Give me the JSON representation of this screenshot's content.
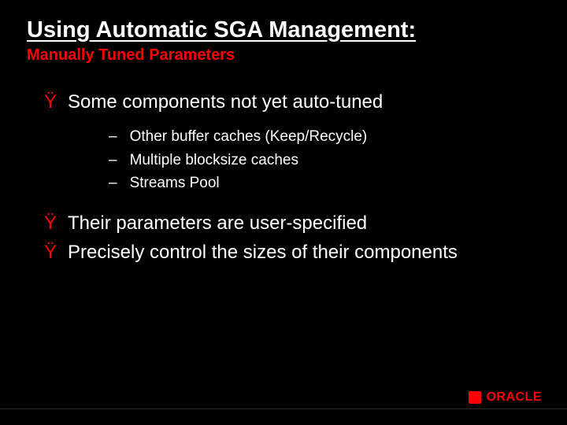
{
  "colors": {
    "background": "#000000",
    "title": "#ffffff",
    "subtitle": "#ff0000",
    "body_text": "#ffffff",
    "bullet_marker": "#ff0000",
    "sub_marker": "#ffffff",
    "logo_accent": "#ff0000"
  },
  "typography": {
    "title_fontsize": 29,
    "subtitle_fontsize": 20,
    "bullet_fontsize": 24,
    "sub_fontsize": 19,
    "font_family": "Arial"
  },
  "title": "Using Automatic SGA Management:",
  "subtitle": "Manually Tuned Parameters",
  "bullet_marker": "Ÿ",
  "sub_marker": "–",
  "bullets": [
    {
      "text": "Some components not yet auto-tuned",
      "subitems": [
        "Other buffer caches (Keep/Recycle)",
        "Multiple blocksize caches",
        "Streams Pool"
      ]
    },
    {
      "text": "Their parameters are user-specified",
      "subitems": []
    },
    {
      "text": "Precisely control the sizes of their components",
      "subitems": []
    }
  ],
  "logo": {
    "text": "ORACLE"
  }
}
